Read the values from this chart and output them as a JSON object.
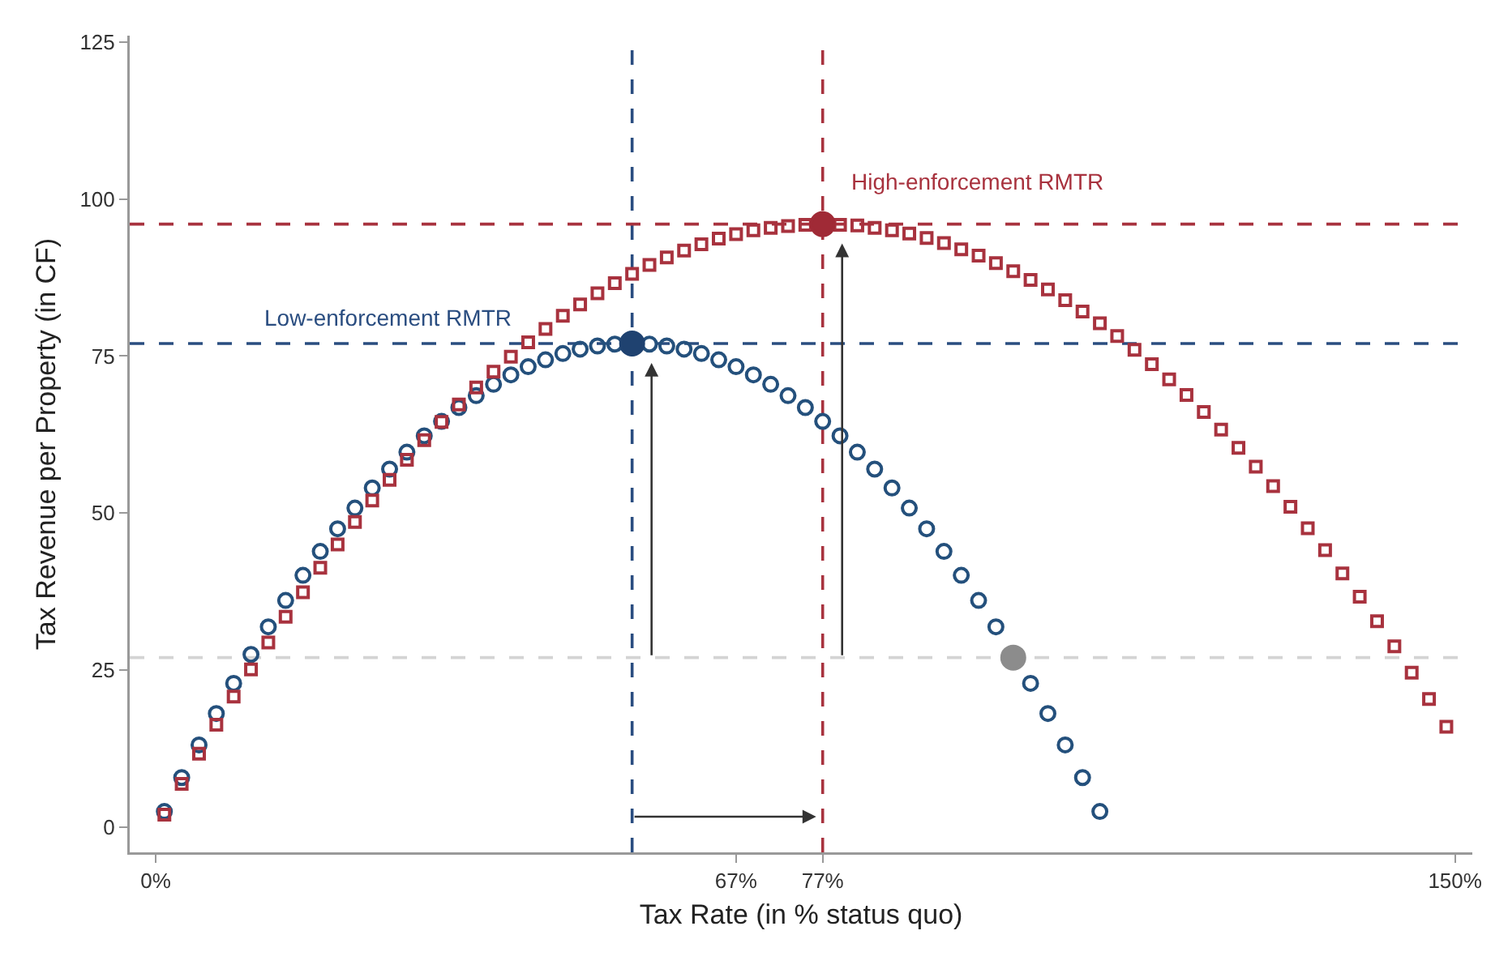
{
  "chart_data": {
    "type": "scatter",
    "xlabel": "Tax Rate (in % status quo)",
    "ylabel": "Tax Revenue per Property (in CF)",
    "xlim": [
      -3,
      152
    ],
    "ylim": [
      -4,
      126
    ],
    "xticks": [
      {
        "value": 0,
        "label": "0%"
      },
      {
        "value": 67,
        "label": "67%"
      },
      {
        "value": 77,
        "label": "77%"
      },
      {
        "value": 150,
        "label": "150%"
      }
    ],
    "yticks": [
      0,
      25,
      50,
      75,
      100,
      125
    ],
    "grid": false,
    "series": [
      {
        "marker": "circle",
        "color": "#24507c",
        "x": [
          1,
          3,
          5,
          7,
          9,
          11,
          13,
          15,
          17,
          19,
          21,
          23,
          25,
          27,
          29,
          31,
          33,
          35,
          37,
          39,
          41,
          43,
          45,
          47,
          49,
          51,
          53,
          55,
          57,
          59,
          61,
          63,
          65,
          67,
          69,
          71,
          73,
          75,
          77,
          79,
          81,
          83,
          85,
          87,
          89,
          91,
          93,
          95,
          97,
          99,
          101,
          103,
          105,
          107,
          109
        ],
        "values": [
          2.5,
          7.9,
          13.1,
          18.1,
          22.9,
          27.5,
          31.9,
          36.1,
          40.1,
          43.9,
          47.5,
          50.8,
          54.0,
          57.0,
          59.7,
          62.3,
          64.6,
          66.8,
          68.7,
          70.5,
          72.0,
          73.3,
          74.4,
          75.4,
          76.1,
          76.6,
          76.9,
          null,
          76.9,
          76.6,
          76.1,
          75.4,
          74.4,
          73.3,
          72.0,
          70.5,
          68.7,
          66.8,
          64.6,
          62.3,
          59.7,
          57.0,
          54.0,
          50.8,
          47.5,
          43.9,
          40.1,
          36.1,
          31.9,
          null,
          22.9,
          18.1,
          13.1,
          7.9,
          2.5
        ]
      },
      {
        "marker": "square",
        "color": "#a8323e",
        "x": [
          1,
          3,
          5,
          7,
          9,
          11,
          13,
          15,
          17,
          19,
          21,
          23,
          25,
          27,
          29,
          31,
          33,
          35,
          37,
          39,
          41,
          43,
          45,
          47,
          49,
          51,
          53,
          55,
          57,
          59,
          61,
          63,
          65,
          67,
          69,
          71,
          73,
          75,
          77,
          79,
          81,
          83,
          85,
          87,
          89,
          91,
          93,
          95,
          97,
          99,
          101,
          103,
          105,
          107,
          109,
          111,
          113,
          115,
          117,
          119,
          121,
          123,
          125,
          127,
          129,
          131,
          133,
          135,
          137,
          139,
          141,
          143,
          145,
          147,
          149
        ],
        "values": [
          2.0,
          6.9,
          11.7,
          16.3,
          20.8,
          25.1,
          29.4,
          33.5,
          37.4,
          41.3,
          45.0,
          48.6,
          52.0,
          55.3,
          58.5,
          61.6,
          64.5,
          67.3,
          70.0,
          72.5,
          74.9,
          77.2,
          79.3,
          81.4,
          83.2,
          85.0,
          86.6,
          88.1,
          89.5,
          90.7,
          91.8,
          92.8,
          93.7,
          94.4,
          95.0,
          95.4,
          95.7,
          95.9,
          null,
          95.9,
          95.8,
          95.4,
          95.0,
          94.5,
          93.8,
          93.0,
          92.0,
          91.0,
          89.8,
          88.5,
          87.1,
          85.6,
          83.9,
          82.1,
          80.2,
          78.2,
          76.0,
          73.7,
          71.3,
          68.8,
          66.1,
          63.3,
          60.4,
          57.4,
          54.3,
          51.0,
          47.6,
          44.1,
          40.4,
          36.7,
          32.8,
          28.8,
          24.6,
          20.4,
          16.0
        ]
      },
      {
        "marker": "circle",
        "color": "#1f4270",
        "x": [
          55
        ],
        "values": [
          77
        ]
      },
      {
        "marker": "circle",
        "color": "#a02a36",
        "x": [
          77
        ],
        "values": [
          96
        ]
      },
      {
        "marker": "circle",
        "color": "#8c8c8c",
        "x": [
          99
        ],
        "values": [
          27
        ]
      }
    ],
    "ref_lines": [
      {
        "axis": "x",
        "value": 55,
        "color": "#2a4d80",
        "line_style": "dashed"
      },
      {
        "axis": "y",
        "value": 77,
        "color": "#2a4d80",
        "line_style": "dashed"
      },
      {
        "axis": "x",
        "value": 77,
        "color": "#a8323e",
        "line_style": "dashed"
      },
      {
        "axis": "y",
        "value": 96,
        "color": "#a8323e",
        "line_style": "dashed"
      },
      {
        "axis": "y",
        "value": 27,
        "color": "#d4d4d4",
        "line_style": "dashed"
      }
    ],
    "annotations": [
      "Low-enforcement RMTR",
      "High-enforcement RMTR"
    ]
  }
}
